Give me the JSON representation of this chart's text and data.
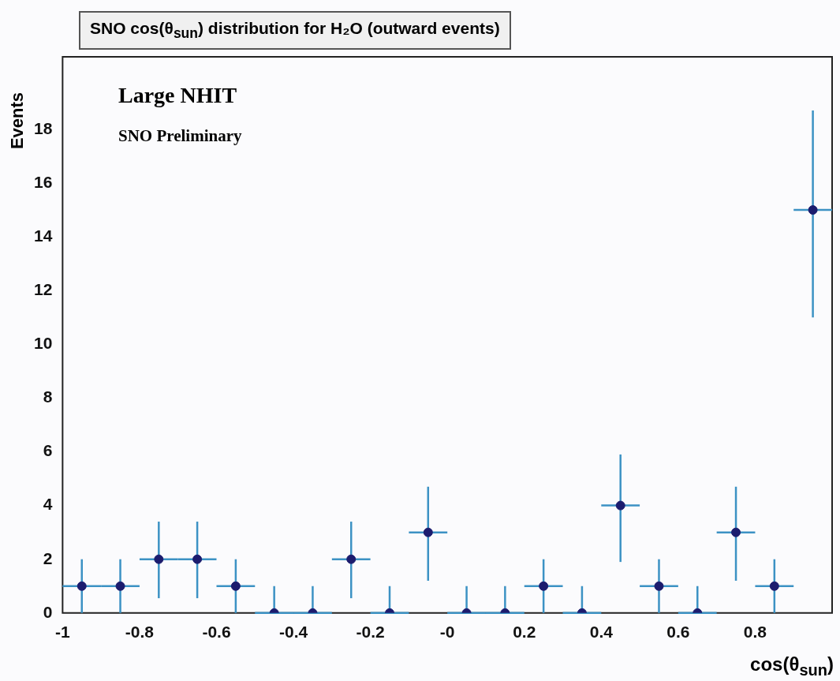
{
  "chart_data": {
    "type": "scatter",
    "title": "SNO cos(θ$_{sun}$) distribution for H₂O (outward events)",
    "xlabel": "cos(θ$_{sun}$)",
    "ylabel": "Events",
    "annotations": [
      "Large NHIT",
      "SNO Preliminary"
    ],
    "x": [
      -0.95,
      -0.85,
      -0.75,
      -0.65,
      -0.55,
      -0.45,
      -0.35,
      -0.25,
      -0.15,
      -0.05,
      0.05,
      0.15,
      0.25,
      0.35,
      0.45,
      0.55,
      0.65,
      0.75,
      0.85,
      0.95
    ],
    "series": [
      {
        "color": "#1c1c6e",
        "values": [
          1,
          1,
          2,
          2,
          1,
          0,
          0,
          2,
          0,
          3,
          0,
          0,
          1,
          0,
          4,
          1,
          0,
          3,
          1,
          15
        ],
        "errors": [
          [
            0,
            2
          ],
          [
            0,
            2
          ],
          [
            0.55,
            3.4
          ],
          [
            0.55,
            3.4
          ],
          [
            0,
            2
          ],
          [
            0,
            1
          ],
          [
            0,
            1
          ],
          [
            0.55,
            3.4
          ],
          [
            0,
            1
          ],
          [
            1.2,
            4.7
          ],
          [
            0,
            1
          ],
          [
            0,
            1
          ],
          [
            0,
            2
          ],
          [
            0,
            1
          ],
          [
            1.9,
            5.9
          ],
          [
            0,
            2
          ],
          [
            0,
            1
          ],
          [
            1.2,
            4.7
          ],
          [
            0,
            2
          ],
          [
            11,
            18.7
          ]
        ],
        "xerrors": [
          0.05,
          0.05,
          0.05,
          0.05,
          0.05,
          0.05,
          0.05,
          0.05,
          0.05,
          0.05,
          0.05,
          0.05,
          0.05,
          0.05,
          0.05,
          0.05,
          0.05,
          0.05,
          0.05,
          0.05
        ]
      }
    ],
    "xlim": [
      -1,
      1
    ],
    "ylim": [
      0,
      20.7
    ],
    "xticks": [
      -1,
      -0.8,
      -0.6,
      -0.4,
      -0.2,
      {
        "value": 0,
        "label": "-0"
      },
      0.2,
      0.4,
      0.6,
      0.8,
      {
        "value": 1,
        "label": null
      }
    ],
    "yticks": [
      0,
      2,
      4,
      6,
      8,
      10,
      12,
      14,
      16,
      18
    ],
    "grid": false,
    "legend": false,
    "marker": "circle"
  }
}
